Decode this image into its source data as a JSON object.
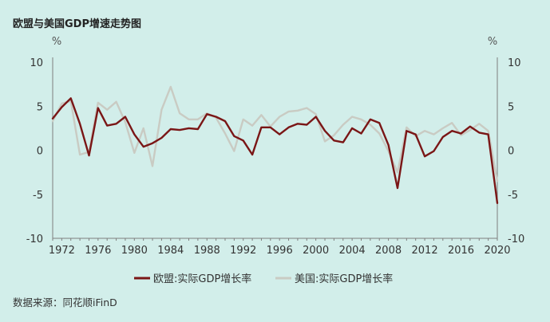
{
  "chart_data": {
    "type": "line",
    "title": "欧盟与美国GDP增速走势图",
    "left_axis": {
      "unit": "%",
      "ylim": [
        -10,
        10
      ],
      "ticks": [
        10,
        5,
        0,
        -5,
        -10
      ]
    },
    "right_axis": {
      "unit": "%",
      "ylim": [
        -10,
        10
      ],
      "ticks": [
        10,
        5,
        0,
        -5,
        -10
      ]
    },
    "xlim": [
      1971,
      2020
    ],
    "x_ticks": [
      1972,
      1976,
      1980,
      1984,
      1988,
      1992,
      1996,
      2000,
      2004,
      2008,
      2012,
      2016,
      2020
    ],
    "grid": false,
    "legend_position": "bottom",
    "series": [
      {
        "name": "欧盟:实际GDP增长率",
        "color": "#7a1616",
        "x": [
          1971,
          1972,
          1973,
          1974,
          1975,
          1976,
          1977,
          1978,
          1979,
          1980,
          1981,
          1982,
          1983,
          1984,
          1985,
          1986,
          1987,
          1988,
          1989,
          1990,
          1991,
          1992,
          1993,
          1994,
          1995,
          1996,
          1997,
          1998,
          1999,
          2000,
          2001,
          2002,
          2003,
          2004,
          2005,
          2006,
          2007,
          2008,
          2009,
          2010,
          2011,
          2012,
          2013,
          2014,
          2015,
          2016,
          2017,
          2018,
          2019,
          2020
        ],
        "values": [
          3.6,
          4.9,
          5.9,
          3.0,
          -0.6,
          4.8,
          2.8,
          3.0,
          3.8,
          1.8,
          0.4,
          0.8,
          1.4,
          2.4,
          2.3,
          2.5,
          2.4,
          4.1,
          3.8,
          3.3,
          1.6,
          1.1,
          -0.5,
          2.6,
          2.6,
          1.8,
          2.6,
          3.0,
          2.9,
          3.8,
          2.2,
          1.1,
          0.9,
          2.5,
          1.9,
          3.5,
          3.1,
          0.6,
          -4.3,
          2.2,
          1.8,
          -0.7,
          -0.1,
          1.5,
          2.2,
          1.9,
          2.7,
          2.0,
          1.8,
          -6.0
        ]
      },
      {
        "name": "美国:实际GDP增长率",
        "color": "#c9cbc3",
        "x": [
          1971,
          1972,
          1973,
          1974,
          1975,
          1976,
          1977,
          1978,
          1979,
          1980,
          1981,
          1982,
          1983,
          1984,
          1985,
          1986,
          1987,
          1988,
          1989,
          1990,
          1991,
          1992,
          1993,
          1994,
          1995,
          1996,
          1997,
          1998,
          1999,
          2000,
          2001,
          2002,
          2003,
          2004,
          2005,
          2006,
          2007,
          2008,
          2009,
          2010,
          2011,
          2012,
          2013,
          2014,
          2015,
          2016,
          2017,
          2018,
          2019,
          2020
        ],
        "values": [
          3.3,
          5.3,
          5.6,
          -0.5,
          -0.2,
          5.4,
          4.6,
          5.5,
          3.2,
          -0.3,
          2.5,
          -1.8,
          4.6,
          7.2,
          4.2,
          3.5,
          3.5,
          4.2,
          3.7,
          1.9,
          -0.1,
          3.5,
          2.8,
          4.0,
          2.7,
          3.8,
          4.4,
          4.5,
          4.8,
          4.1,
          1.0,
          1.7,
          2.9,
          3.8,
          3.5,
          2.9,
          1.9,
          -0.1,
          -2.5,
          2.6,
          1.6,
          2.2,
          1.8,
          2.5,
          3.1,
          1.7,
          2.3,
          3.0,
          2.2,
          -3.5
        ]
      }
    ]
  },
  "source_text": "数据来源：同花顺iFinD"
}
